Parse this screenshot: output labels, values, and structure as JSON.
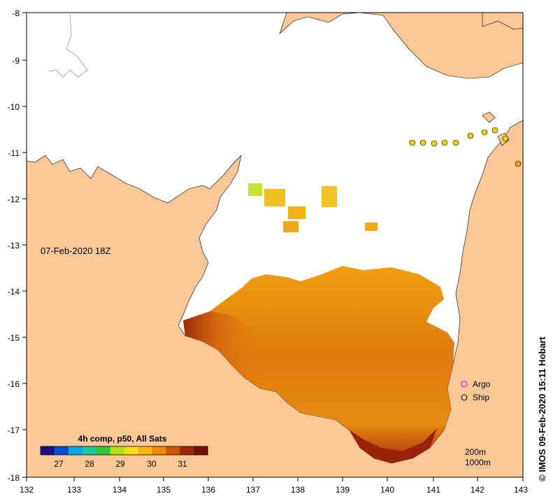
{
  "map": {
    "date_label": "07-Feb-2020 18Z",
    "credit": "© IMOS 09-Feb-2020 15:11 Hobart",
    "x_ticks": [
      "132",
      "133",
      "134",
      "135",
      "136",
      "137",
      "138",
      "139",
      "140",
      "141",
      "142",
      "143"
    ],
    "y_ticks": [
      "-8",
      "-9",
      "-10",
      "-11",
      "-12",
      "-13",
      "-14",
      "-15",
      "-16",
      "-17",
      "-18"
    ],
    "colorbar": {
      "title": "4h comp, p50, All Sats",
      "ticks": [
        "27",
        "28",
        "29",
        "30",
        "31"
      ],
      "colors": [
        "#1b0c8a",
        "#0a4fd6",
        "#0aa8e8",
        "#19c9a0",
        "#2ec43a",
        "#b4e016",
        "#f4e010",
        "#f8b710",
        "#ec8a0c",
        "#cc5a08",
        "#9c2a0a",
        "#7a0f0a"
      ]
    },
    "legend": {
      "argo": "Argo",
      "ship": "Ship"
    },
    "depth_labels": [
      "200m",
      "1000m"
    ],
    "colors": {
      "land": "#fac896",
      "sea_no_data": "#ffffff",
      "observation": "#f0d000",
      "argo": "#e040e0"
    }
  }
}
